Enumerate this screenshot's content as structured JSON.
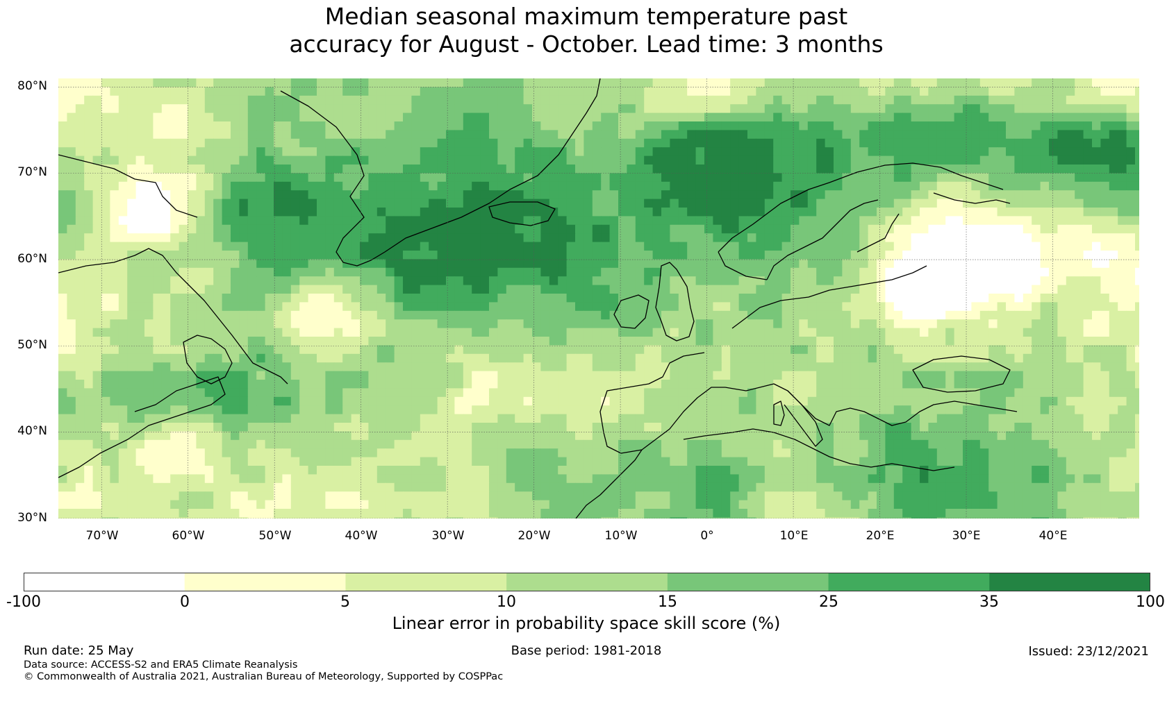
{
  "title": {
    "line1": "Median seasonal maximum temperature past",
    "line2": "accuracy for August - October. Lead time: 3 months"
  },
  "map": {
    "lat_labels": [
      "80°N",
      "70°N",
      "60°N",
      "50°N",
      "40°N",
      "30°N"
    ],
    "lon_labels": [
      "70°W",
      "60°W",
      "50°W",
      "40°W",
      "30°W",
      "20°W",
      "10°W",
      "0°",
      "10°E",
      "20°E",
      "30°E",
      "40°E"
    ],
    "lat_range": [
      30,
      81
    ],
    "lon_range": [
      -75,
      50
    ]
  },
  "colorbar": {
    "ticks": [
      "-100",
      "0",
      "5",
      "10",
      "15",
      "25",
      "35",
      "100"
    ],
    "colors": [
      "#ffffff",
      "#ffffcc",
      "#d9f0a3",
      "#addd8e",
      "#78c679",
      "#41ab5d",
      "#238443"
    ],
    "label": "Linear error in probability space skill score (%)"
  },
  "footer": {
    "run_date": "Run date: 25 May",
    "base_period": "Base period: 1981-2018",
    "issued": "Issued: 23/12/2021",
    "data_source": "Data source: ACCESS-S2 and ERA5 Climate Reanalysis",
    "copyright": "© Commonwealth of Australia 2021, Australian Bureau of Meteorology, Supported by COSPPac"
  }
}
